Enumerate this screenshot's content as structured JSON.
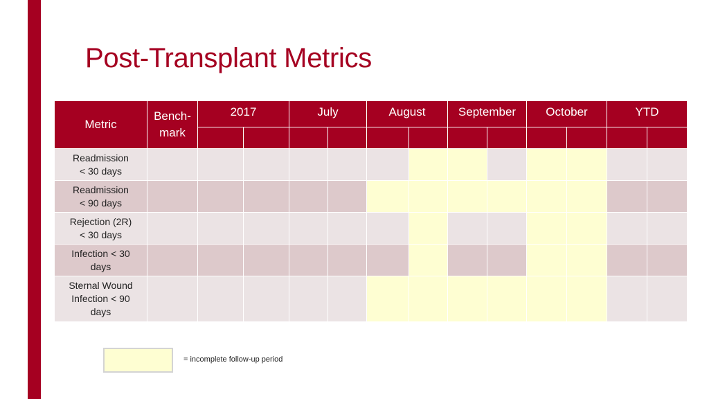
{
  "title": "Post-Transplant Metrics",
  "colors": {
    "accent": "#a50021",
    "row_light": "#ebe3e4",
    "row_dark": "#ddc9cb",
    "incomplete": "#fefed2"
  },
  "table": {
    "columns": {
      "metric": "Metric",
      "benchmark": "Bench-mark",
      "periods": [
        "2017",
        "July",
        "August",
        "September",
        "October",
        "YTD"
      ]
    },
    "rows": [
      {
        "label": "Readmission < 30 days",
        "line1": "Readmission",
        "line2": "< 30 days",
        "line3": "",
        "incomplete": [
          false,
          false,
          false,
          false,
          false,
          false,
          true,
          true,
          false,
          true,
          true,
          false,
          false
        ]
      },
      {
        "label": "Readmission < 90 days",
        "line1": "Readmission",
        "line2": "< 90 days",
        "line3": "",
        "incomplete": [
          false,
          false,
          false,
          false,
          false,
          true,
          true,
          true,
          true,
          true,
          true,
          false,
          false
        ]
      },
      {
        "label": "Rejection (2R) < 30 days",
        "line1": "Rejection (2R)",
        "line2": "< 30 days",
        "line3": "",
        "incomplete": [
          false,
          false,
          false,
          false,
          false,
          false,
          true,
          false,
          false,
          true,
          true,
          false,
          false
        ]
      },
      {
        "label": "Infection < 30 days",
        "line1": "Infection < 30",
        "line2": "days",
        "line3": "",
        "incomplete": [
          false,
          false,
          false,
          false,
          false,
          false,
          true,
          false,
          false,
          true,
          true,
          false,
          false
        ]
      },
      {
        "label": "Sternal Wound Infection < 90 days",
        "line1": "Sternal Wound",
        "line2": "Infection < 90",
        "line3": "days",
        "incomplete": [
          false,
          false,
          false,
          false,
          false,
          true,
          true,
          true,
          true,
          true,
          true,
          false,
          false
        ]
      }
    ]
  },
  "legend": {
    "text": "= incomplete follow-up period"
  }
}
